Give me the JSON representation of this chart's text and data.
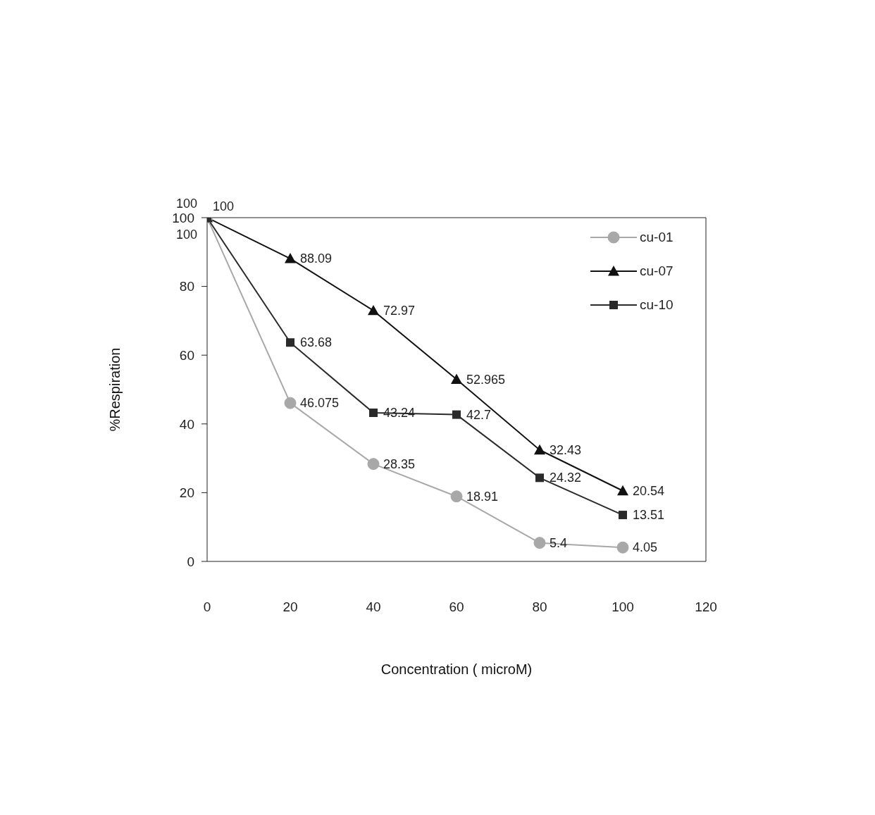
{
  "chart_data": {
    "type": "line",
    "xlabel": "Concentration ( microM)",
    "ylabel": "%Respiration",
    "x": [
      0,
      20,
      40,
      60,
      80,
      100
    ],
    "series": [
      {
        "name": "cu-01",
        "color": "#a8a8a8",
        "marker": "circle",
        "values": [
          100,
          46.075,
          28.35,
          18.91,
          5.4,
          4.05
        ]
      },
      {
        "name": "cu-07",
        "color": "#111111",
        "marker": "triangle",
        "values": [
          100,
          88.09,
          72.97,
          52.965,
          32.43,
          20.54
        ]
      },
      {
        "name": "cu-10",
        "color": "#2a2a2a",
        "marker": "square",
        "values": [
          100,
          63.68,
          43.24,
          42.7,
          24.32,
          13.51
        ]
      }
    ],
    "xlim": [
      0,
      120
    ],
    "xticks": [
      0,
      20,
      40,
      60,
      80,
      100,
      120
    ],
    "ylim": [
      0,
      100
    ],
    "yticks": [
      0,
      20,
      40,
      60,
      80,
      100
    ],
    "data_labels": true,
    "legend": "top right",
    "grid": false,
    "line_style": "solid"
  }
}
